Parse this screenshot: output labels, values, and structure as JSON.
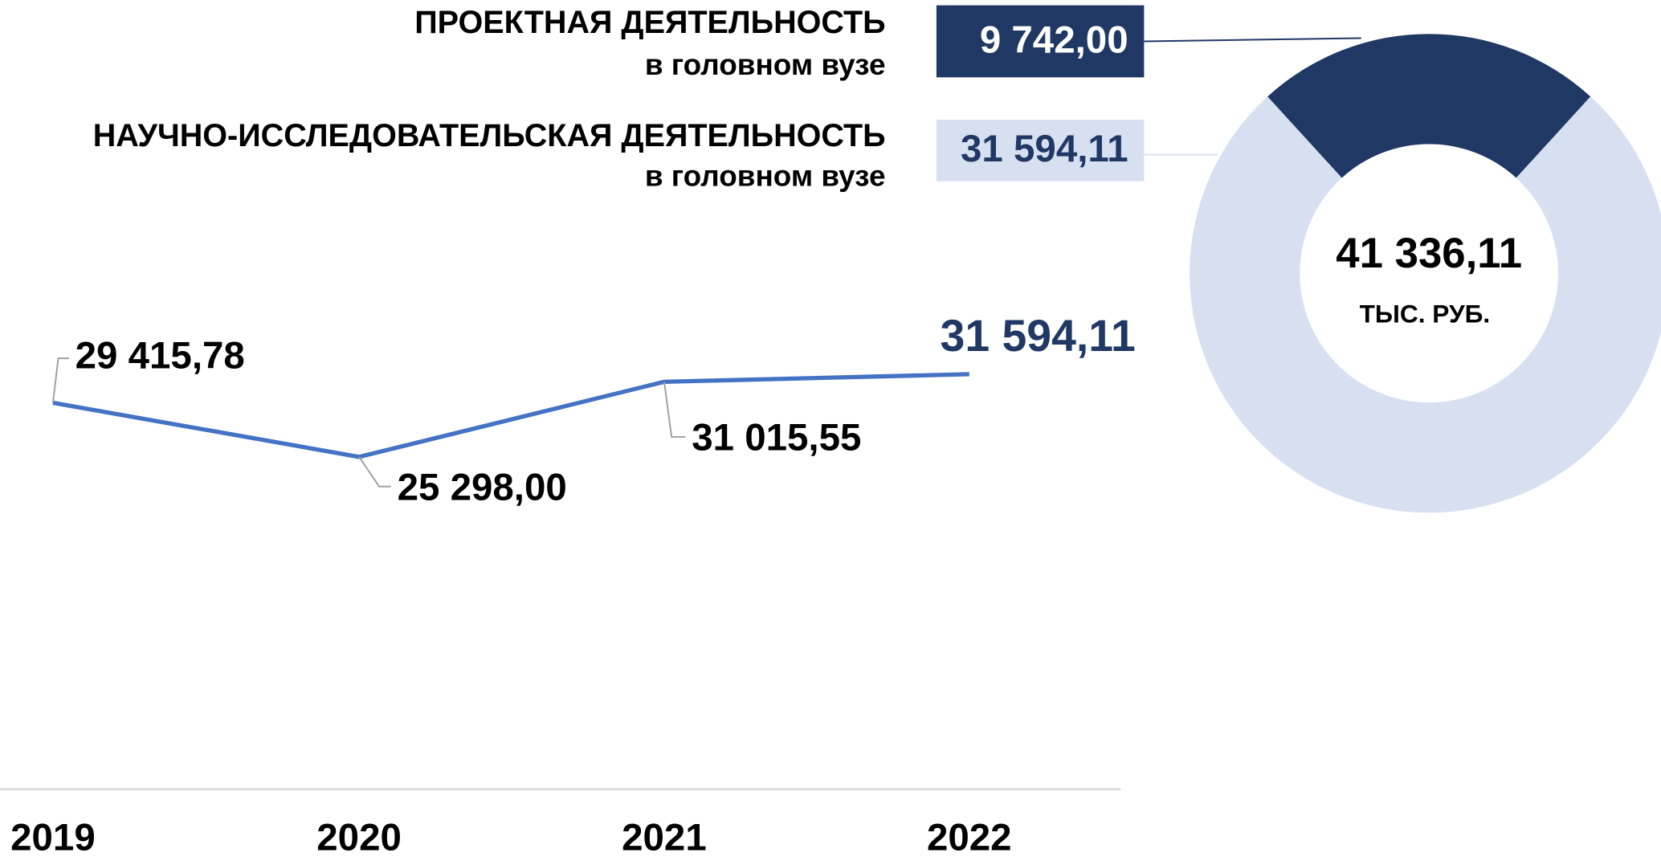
{
  "chart_data": [
    {
      "type": "line",
      "categories": [
        "2019",
        "2020",
        "2021",
        "2022"
      ],
      "values": [
        29415.78,
        25298.0,
        31015.55,
        31594.11
      ],
      "value_labels": [
        "29 415,78",
        "25 298,00",
        "31 015,55",
        "31 594,11"
      ],
      "color": "#4472c4",
      "ylim": [
        0,
        40000
      ]
    },
    {
      "type": "donut",
      "categories": [
        "ПРОЕКТНАЯ ДЕЯТЕЛЬНОСТЬ",
        "НАУЧНО-ИССЛЕДОВАТЕЛЬСКАЯ ДЕЯТЕЛЬНОСТЬ"
      ],
      "category_notes": [
        "в головном вузе",
        "в головном вузе"
      ],
      "values": [
        9742.0,
        31594.11
      ],
      "value_labels": [
        "9 742,00",
        "31 594,11"
      ],
      "colors": [
        "#203864",
        "#d6e0f0"
      ],
      "total_label": "41 336,11",
      "unit": "ТЫС. РУБ."
    }
  ]
}
